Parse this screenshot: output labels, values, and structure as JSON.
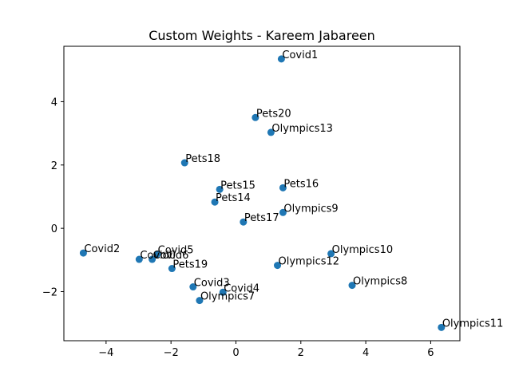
{
  "chart_data": {
    "type": "scatter",
    "title": "Custom Weights - Kareem Jabareen",
    "xlabel": "",
    "ylabel": "",
    "xlim": [
      -5.3,
      6.9
    ],
    "ylim": [
      -3.55,
      5.75
    ],
    "xticks": [
      -4,
      -2,
      0,
      2,
      4,
      6
    ],
    "yticks": [
      -2,
      0,
      2,
      4
    ],
    "grid": false,
    "color": "#1f77b4",
    "points": [
      {
        "label": "Covid1",
        "x": 1.4,
        "y": 5.35
      },
      {
        "label": "Pets20",
        "x": 0.6,
        "y": 3.5
      },
      {
        "label": "Olympics13",
        "x": 1.08,
        "y": 3.03
      },
      {
        "label": "Pets18",
        "x": -1.58,
        "y": 2.07
      },
      {
        "label": "Pets15",
        "x": -0.5,
        "y": 1.23
      },
      {
        "label": "Pets16",
        "x": 1.45,
        "y": 1.28
      },
      {
        "label": "Pets14",
        "x": -0.65,
        "y": 0.83
      },
      {
        "label": "Olympics9",
        "x": 1.45,
        "y": 0.5
      },
      {
        "label": "Pets17",
        "x": 0.23,
        "y": 0.2
      },
      {
        "label": "Covid2",
        "x": -4.7,
        "y": -0.78
      },
      {
        "label": "Covid5",
        "x": -2.43,
        "y": -0.82
      },
      {
        "label": "Covid6",
        "x": -2.58,
        "y": -0.98
      },
      {
        "label": "Covid0",
        "x": -2.98,
        "y": -0.98
      },
      {
        "label": "Olympics10",
        "x": 2.93,
        "y": -0.8
      },
      {
        "label": "Olympics12",
        "x": 1.28,
        "y": -1.17
      },
      {
        "label": "Pets19",
        "x": -1.97,
        "y": -1.27
      },
      {
        "label": "Covid3",
        "x": -1.32,
        "y": -1.85
      },
      {
        "label": "Olympics8",
        "x": 3.58,
        "y": -1.8
      },
      {
        "label": "Covid4",
        "x": -0.4,
        "y": -2.02
      },
      {
        "label": "Olympics7",
        "x": -1.12,
        "y": -2.28
      },
      {
        "label": "Olympics11",
        "x": 6.33,
        "y": -3.13
      }
    ]
  }
}
